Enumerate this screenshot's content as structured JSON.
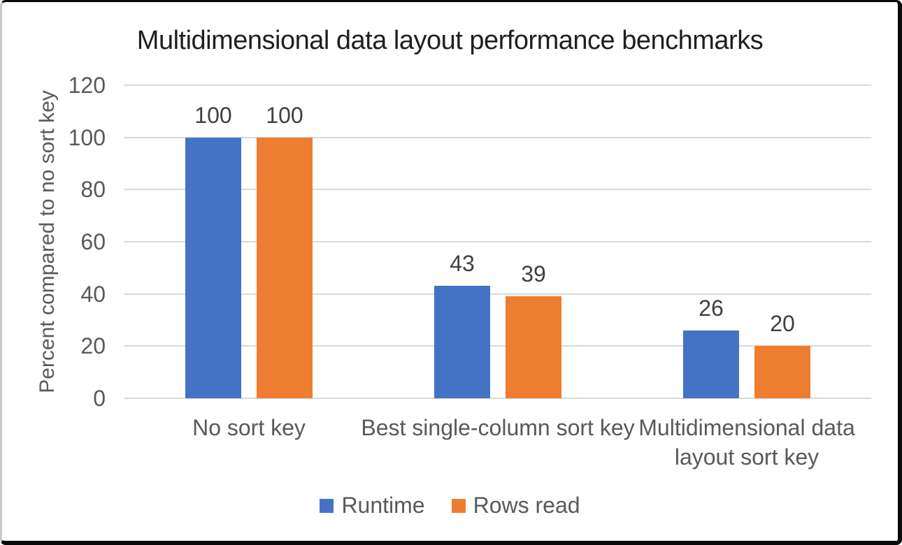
{
  "chart_data": {
    "type": "bar",
    "title": "Multidimensional data layout performance benchmarks",
    "ylabel": "Percent compared to no sort key",
    "xlabel": "",
    "categories": [
      "No sort key",
      "Best single-column sort key",
      "Multidimensional data layout sort key"
    ],
    "series": [
      {
        "name": "Runtime",
        "color": "#4472C4",
        "values": [
          100,
          43,
          26
        ]
      },
      {
        "name": "Rows read",
        "color": "#ED7D31",
        "values": [
          100,
          39,
          20
        ]
      }
    ],
    "ylim": [
      0,
      120
    ],
    "yticks": [
      0,
      20,
      40,
      60,
      80,
      100,
      120
    ],
    "grid": "horizontal",
    "gridline_color": "#D9D9D9",
    "axis_text_color": "#595959",
    "data_label_color": "#404040",
    "title_color": "#1F1F1F",
    "legend_position": "bottom",
    "data_labels_shown": true
  }
}
